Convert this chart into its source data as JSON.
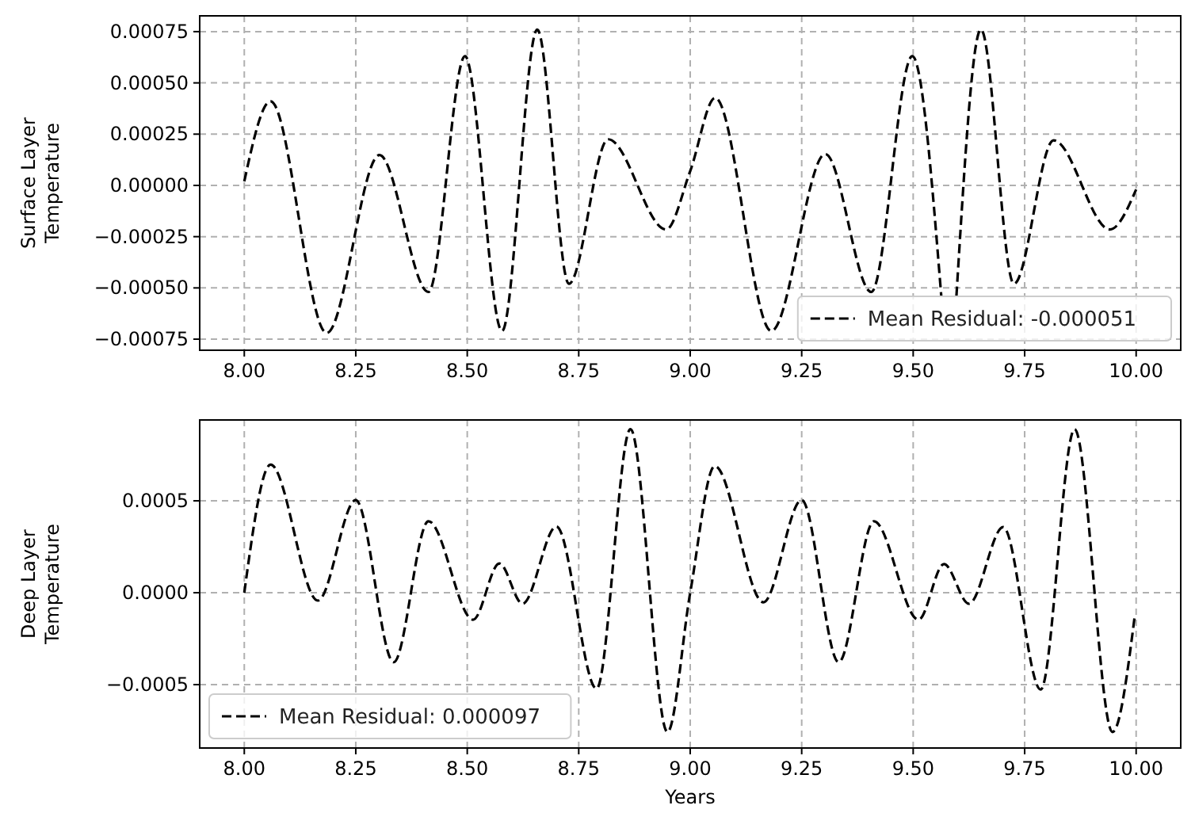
{
  "chart_data": [
    {
      "type": "line",
      "ylabel": "Surface Layer\nTemperature",
      "xlim": [
        7.9,
        10.1
      ],
      "xticks": [
        {
          "value": 8,
          "label": "8.00"
        },
        {
          "value": 8.25,
          "label": "8.25"
        },
        {
          "value": 8.5,
          "label": "8.50"
        },
        {
          "value": 8.75,
          "label": "8.75"
        },
        {
          "value": 9,
          "label": "9.00"
        },
        {
          "value": 9.25,
          "label": "9.25"
        },
        {
          "value": 9.5,
          "label": "9.50"
        },
        {
          "value": 9.75,
          "label": "9.75"
        },
        {
          "value": 10,
          "label": "10.00"
        }
      ],
      "ylim": [
        -0.000804,
        0.000827
      ],
      "yticks": [
        {
          "value": -0.00075,
          "label": "−0.00075"
        },
        {
          "value": -0.0005,
          "label": "−0.00050"
        },
        {
          "value": -0.00025,
          "label": "−0.00025"
        },
        {
          "value": 0,
          "label": "0.00000"
        },
        {
          "value": 0.00025,
          "label": "0.00025"
        },
        {
          "value": 0.0005,
          "label": "0.00050"
        },
        {
          "value": 0.00075,
          "label": "0.00075"
        }
      ],
      "grid": true,
      "legend": "bottom right",
      "line_style": "dashed",
      "marker": "none",
      "series": [
        {
          "name": "Mean Residual: -0.000051",
          "color": "#000000",
          "x": [
            8.0,
            8.059,
            8.185,
            8.303,
            8.413,
            8.495,
            8.578,
            8.657,
            8.728,
            8.816,
            8.946,
            9.0,
            9.056,
            9.182,
            9.303,
            9.406,
            9.498,
            9.563,
            9.58,
            9.597,
            9.652,
            9.726,
            9.815,
            9.941,
            10.0
          ],
          "values": [
            2e-05,
            0.00041,
            -0.00072,
            0.000148,
            -0.00052,
            0.00063,
            -0.00071,
            0.00076,
            -0.00048,
            0.000225,
            -0.000215,
            7e-05,
            0.000427,
            -0.00071,
            0.000153,
            -0.00052,
            0.00063,
            -0.00054,
            null,
            -0.00054,
            0.00076,
            -0.00048,
            0.00022,
            -0.000215,
            -2e-05
          ]
        }
      ]
    },
    {
      "type": "line",
      "ylabel": "Deep Layer\nTemperature",
      "xlabel": "Years",
      "xlim": [
        7.9,
        10.1
      ],
      "xticks": [
        {
          "value": 8,
          "label": "8.00"
        },
        {
          "value": 8.25,
          "label": "8.25"
        },
        {
          "value": 8.5,
          "label": "8.50"
        },
        {
          "value": 8.75,
          "label": "8.75"
        },
        {
          "value": 9,
          "label": "9.00"
        },
        {
          "value": 9.25,
          "label": "9.25"
        },
        {
          "value": 9.5,
          "label": "9.50"
        },
        {
          "value": 9.75,
          "label": "9.75"
        },
        {
          "value": 10,
          "label": "10.00"
        }
      ],
      "ylim": [
        -0.000845,
        0.00094
      ],
      "yticks": [
        {
          "value": -0.0005,
          "label": "−0.0005"
        },
        {
          "value": 0,
          "label": "0.0000"
        },
        {
          "value": 0.0005,
          "label": "0.0005"
        }
      ],
      "grid": true,
      "legend": "bottom left",
      "line_style": "dashed",
      "marker": "none",
      "series": [
        {
          "name": "Mean Residual: 0.000097",
          "color": "#000000",
          "x": [
            8.0,
            8.059,
            8.165,
            8.25,
            8.335,
            8.413,
            8.513,
            8.572,
            8.624,
            8.7,
            8.79,
            8.866,
            8.949,
            9.0,
            9.055,
            9.164,
            9.25,
            9.333,
            9.412,
            9.512,
            9.569,
            9.625,
            9.702,
            9.786,
            9.862,
            9.947,
            9.997
          ],
          "values": [
            0,
            0.000697,
            -4.3e-05,
            0.000504,
            -0.000378,
            0.000389,
            -0.000147,
            0.000159,
            -6e-05,
            0.00036,
            -0.000522,
            0.00089,
            -0.000758,
            0,
            0.000689,
            -5.2e-05,
            0.000504,
            -0.000378,
            0.000389,
            -0.000147,
            0.000156,
            -6e-05,
            0.000357,
            -0.000527,
            0.00089,
            -0.000758,
            -0.000124
          ]
        }
      ]
    }
  ]
}
